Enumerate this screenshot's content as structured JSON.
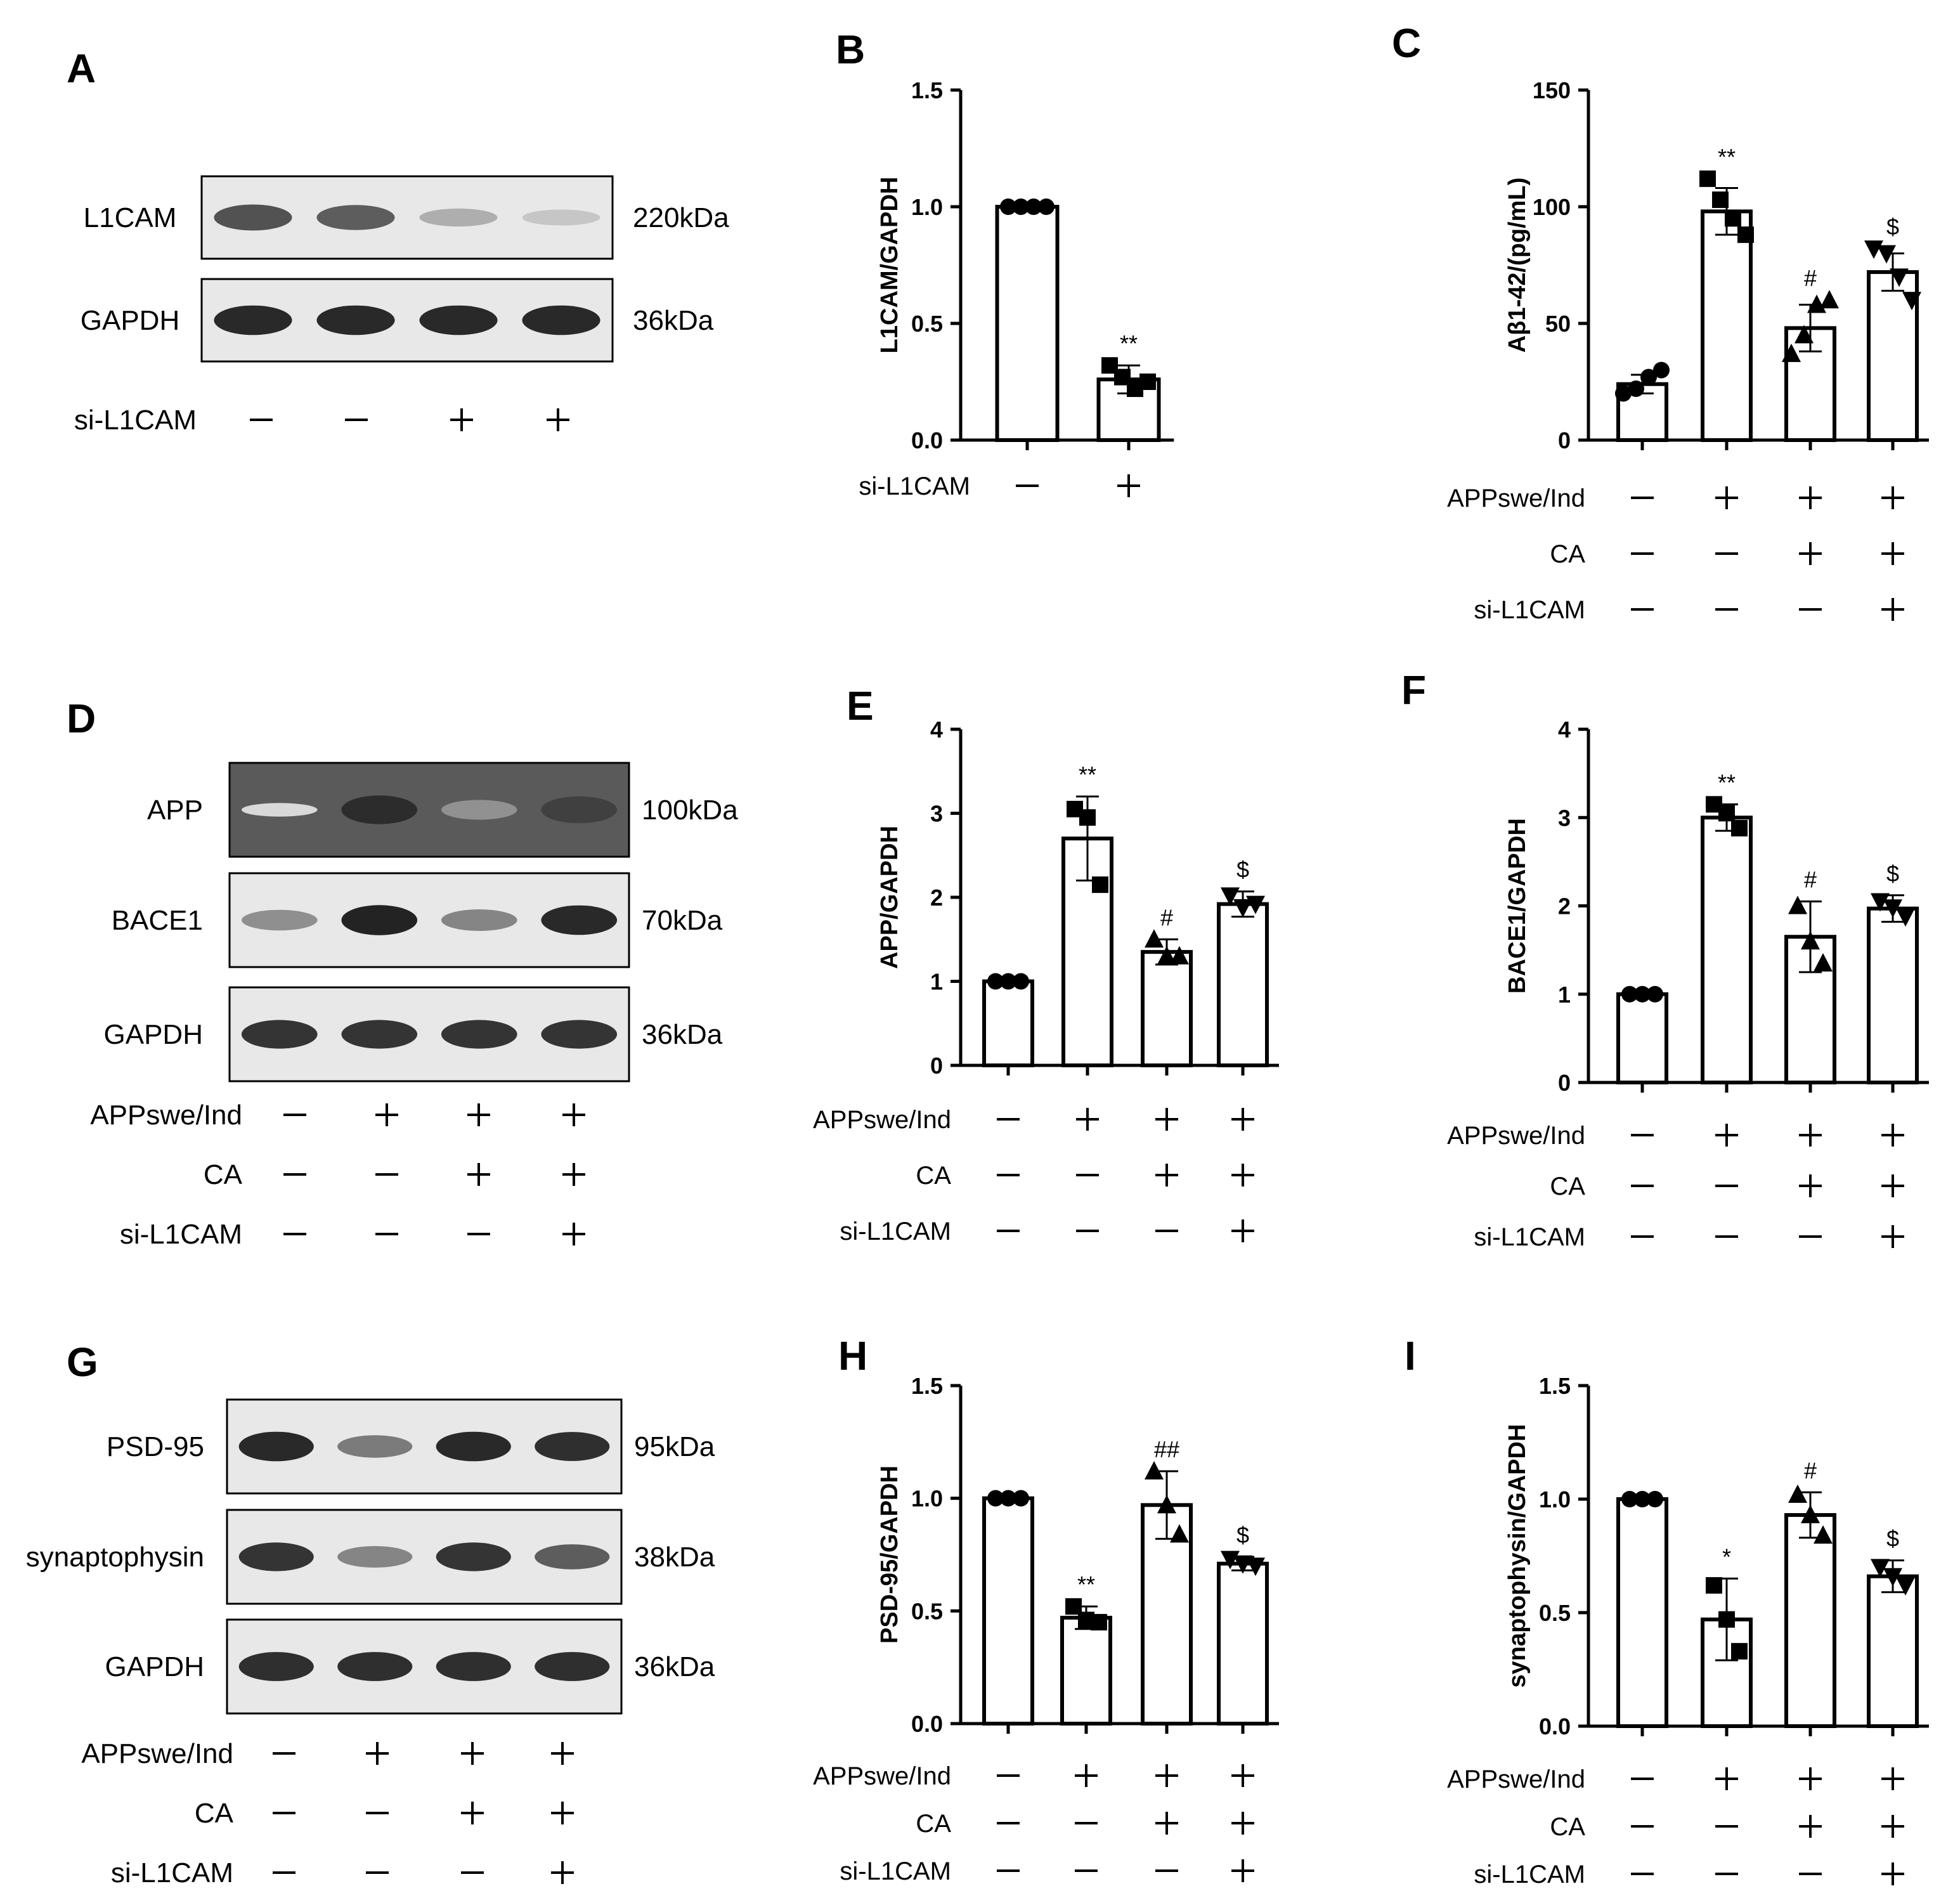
{
  "blots": [
    {
      "letter": "A",
      "rows": [
        {
          "label": "L1CAM",
          "kda": "220kDa",
          "intensity": [
            0.75,
            0.7,
            0.3,
            0.18
          ],
          "dark_bg": false
        },
        {
          "label": "GAPDH",
          "kda": "36kDa",
          "intensity": [
            0.95,
            0.95,
            0.95,
            0.95
          ],
          "dark_bg": false
        }
      ],
      "conditions": [
        {
          "label": "si-L1CAM",
          "signs": [
            "−",
            "−",
            "+",
            "+"
          ]
        }
      ]
    },
    {
      "letter": "D",
      "rows": [
        {
          "label": "APP",
          "kda": "100kDa",
          "intensity": [
            0.05,
            0.9,
            0.4,
            0.8
          ],
          "dark_bg": true
        },
        {
          "label": "BACE1",
          "kda": "70kDa",
          "intensity": [
            0.45,
            0.98,
            0.5,
            0.95
          ],
          "dark_bg": false
        },
        {
          "label": "GAPDH",
          "kda": "36kDa",
          "intensity": [
            0.9,
            0.9,
            0.9,
            0.9
          ],
          "dark_bg": false
        }
      ],
      "conditions": [
        {
          "label": "APPswe/Ind",
          "signs": [
            "−",
            "+",
            "+",
            "+"
          ]
        },
        {
          "label": "CA",
          "signs": [
            "−",
            "−",
            "+",
            "+"
          ]
        },
        {
          "label": "si-L1CAM",
          "signs": [
            "−",
            "−",
            "−",
            "+"
          ]
        }
      ]
    },
    {
      "letter": "G",
      "rows": [
        {
          "label": "PSD-95",
          "kda": "95kDa",
          "intensity": [
            0.95,
            0.55,
            0.95,
            0.92
          ],
          "dark_bg": false
        },
        {
          "label": "synaptophysin",
          "kda": "38kDa",
          "intensity": [
            0.9,
            0.5,
            0.9,
            0.7
          ],
          "dark_bg": false
        },
        {
          "label": "GAPDH",
          "kda": "36kDa",
          "intensity": [
            0.92,
            0.92,
            0.92,
            0.92
          ],
          "dark_bg": false
        }
      ],
      "conditions": [
        {
          "label": "APPswe/Ind",
          "signs": [
            "−",
            "+",
            "+",
            "+"
          ]
        },
        {
          "label": "CA",
          "signs": [
            "−",
            "−",
            "+",
            "+"
          ]
        },
        {
          "label": "si-L1CAM",
          "signs": [
            "−",
            "−",
            "−",
            "+"
          ]
        }
      ]
    }
  ],
  "chart_data": [
    {
      "letter": "B",
      "type": "bar",
      "ylabel": "L1CAM/GAPDH",
      "ylim": [
        0,
        1.5
      ],
      "yticks": [
        "0.0",
        "0.5",
        "1.0",
        "1.5"
      ],
      "values": [
        1.0,
        0.26
      ],
      "errors": [
        0,
        0.06
      ],
      "points": [
        [
          1,
          1,
          1,
          1
        ],
        [
          0.32,
          0.27,
          0.22,
          0.25
        ]
      ],
      "markers": [
        "circle",
        "square"
      ],
      "annotations": [
        "",
        "**"
      ],
      "conditions": [
        {
          "label": "si-L1CAM",
          "signs": [
            "−",
            "+"
          ]
        }
      ]
    },
    {
      "letter": "C",
      "type": "bar",
      "ylabel": "Aβ1-42/(pg/mL)",
      "ylim": [
        0,
        150
      ],
      "yticks": [
        "0",
        "50",
        "100",
        "150"
      ],
      "values": [
        24,
        98,
        48,
        72
      ],
      "errors": [
        4,
        10,
        10,
        8
      ],
      "points": [
        [
          20,
          22,
          27,
          30
        ],
        [
          112,
          103,
          95,
          88
        ],
        [
          37,
          45,
          58,
          60
        ],
        [
          82,
          80,
          70,
          60
        ]
      ],
      "markers": [
        "circle",
        "square",
        "triangle-up",
        "triangle-down"
      ],
      "annotations": [
        "",
        "**",
        "#",
        "$"
      ],
      "conditions": [
        {
          "label": "APPswe/Ind",
          "signs": [
            "−",
            "+",
            "+",
            "+"
          ]
        },
        {
          "label": "CA",
          "signs": [
            "−",
            "−",
            "+",
            "+"
          ]
        },
        {
          "label": "si-L1CAM",
          "signs": [
            "−",
            "−",
            "−",
            "+"
          ]
        }
      ]
    },
    {
      "letter": "E",
      "type": "bar",
      "ylabel": "APP/GAPDH",
      "ylim": [
        0,
        4
      ],
      "yticks": [
        "0",
        "1",
        "2",
        "3",
        "4"
      ],
      "values": [
        1.0,
        2.7,
        1.35,
        1.92
      ],
      "errors": [
        0,
        0.5,
        0.15,
        0.15
      ],
      "points": [
        [
          1,
          1,
          1
        ],
        [
          3.05,
          2.95,
          2.15
        ],
        [
          1.5,
          1.3,
          1.3
        ],
        [
          2.02,
          1.88,
          1.92
        ]
      ],
      "markers": [
        "circle",
        "square",
        "triangle-up",
        "triangle-down"
      ],
      "annotations": [
        "",
        "**",
        "#",
        "$"
      ],
      "conditions": [
        {
          "label": "APPswe/Ind",
          "signs": [
            "−",
            "+",
            "+",
            "+"
          ]
        },
        {
          "label": "CA",
          "signs": [
            "−",
            "−",
            "+",
            "+"
          ]
        },
        {
          "label": "si-L1CAM",
          "signs": [
            "−",
            "−",
            "−",
            "+"
          ]
        }
      ]
    },
    {
      "letter": "F",
      "type": "bar",
      "ylabel": "BACE1/GAPDH",
      "ylim": [
        0,
        4
      ],
      "yticks": [
        "0",
        "1",
        "2",
        "3",
        "4"
      ],
      "values": [
        1.0,
        3.0,
        1.65,
        1.97
      ],
      "errors": [
        0,
        0.15,
        0.4,
        0.15
      ],
      "points": [
        [
          1,
          1,
          1
        ],
        [
          3.15,
          3.05,
          2.88
        ],
        [
          2.0,
          1.6,
          1.35
        ],
        [
          2.05,
          1.98,
          1.88
        ]
      ],
      "markers": [
        "circle",
        "square",
        "triangle-up",
        "triangle-down"
      ],
      "annotations": [
        "",
        "**",
        "#",
        "$"
      ],
      "conditions": [
        {
          "label": "APPswe/Ind",
          "signs": [
            "−",
            "+",
            "+",
            "+"
          ]
        },
        {
          "label": "CA",
          "signs": [
            "−",
            "−",
            "+",
            "+"
          ]
        },
        {
          "label": "si-L1CAM",
          "signs": [
            "−",
            "−",
            "−",
            "+"
          ]
        }
      ]
    },
    {
      "letter": "H",
      "type": "bar",
      "ylabel": "PSD-95/GAPDH",
      "ylim": [
        0,
        1.5
      ],
      "yticks": [
        "0.0",
        "0.5",
        "1.0",
        "1.5"
      ],
      "values": [
        1.0,
        0.47,
        0.97,
        0.71
      ],
      "errors": [
        0,
        0.05,
        0.15,
        0.03
      ],
      "points": [
        [
          1,
          1,
          1
        ],
        [
          0.52,
          0.46,
          0.45
        ],
        [
          1.12,
          0.97,
          0.84
        ],
        [
          0.73,
          0.71,
          0.7
        ]
      ],
      "markers": [
        "circle",
        "square",
        "triangle-up",
        "triangle-down"
      ],
      "annotations": [
        "",
        "**",
        "##",
        "$"
      ],
      "conditions": [
        {
          "label": "APPswe/Ind",
          "signs": [
            "−",
            "+",
            "+",
            "+"
          ]
        },
        {
          "label": "CA",
          "signs": [
            "−",
            "−",
            "+",
            "+"
          ]
        },
        {
          "label": "si-L1CAM",
          "signs": [
            "−",
            "−",
            "−",
            "+"
          ]
        }
      ]
    },
    {
      "letter": "I",
      "type": "bar",
      "ylabel": "synaptophysin/GAPDH",
      "ylim": [
        0,
        1.5
      ],
      "yticks": [
        "0.0",
        "0.5",
        "1.0",
        "1.5"
      ],
      "values": [
        1.0,
        0.47,
        0.93,
        0.66
      ],
      "errors": [
        0,
        0.18,
        0.1,
        0.07
      ],
      "points": [
        [
          1,
          1,
          1
        ],
        [
          0.62,
          0.47,
          0.33
        ],
        [
          1.02,
          0.93,
          0.84
        ],
        [
          0.7,
          0.66,
          0.62
        ]
      ],
      "markers": [
        "circle",
        "square",
        "triangle-up",
        "triangle-down"
      ],
      "annotations": [
        "",
        "*",
        "#",
        "$"
      ],
      "conditions": [
        {
          "label": "APPswe/Ind",
          "signs": [
            "−",
            "+",
            "+",
            "+"
          ]
        },
        {
          "label": "CA",
          "signs": [
            "−",
            "−",
            "+",
            "+"
          ]
        },
        {
          "label": "si-L1CAM",
          "signs": [
            "−",
            "−",
            "−",
            "+"
          ]
        }
      ]
    }
  ]
}
